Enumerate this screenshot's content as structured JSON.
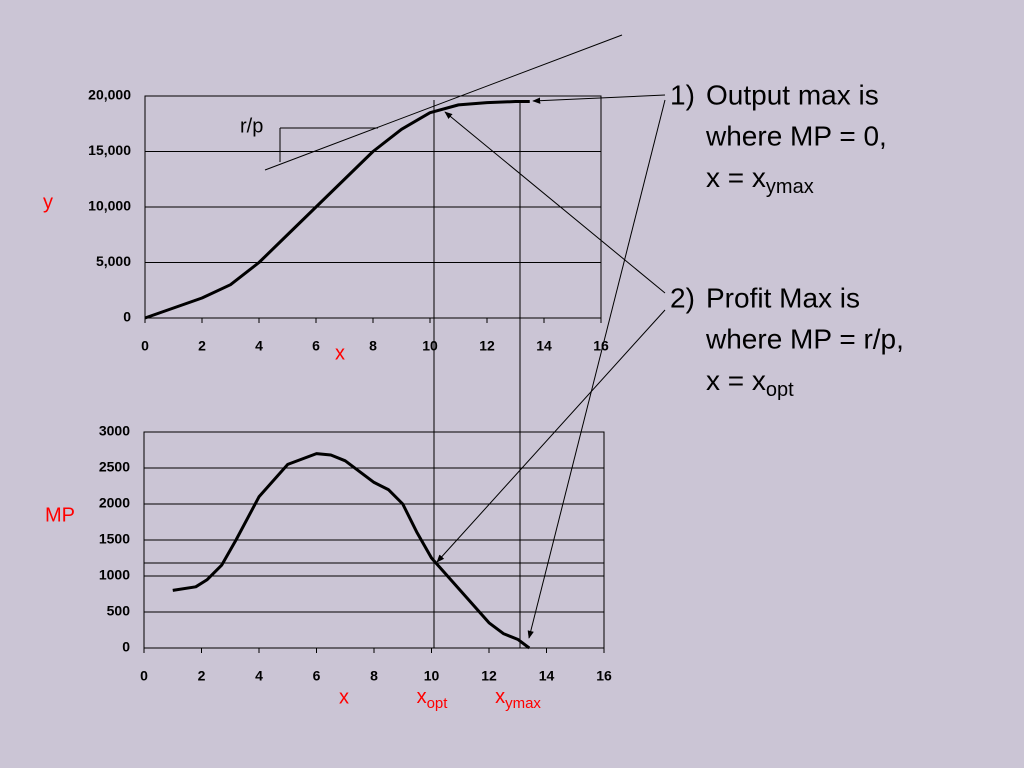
{
  "chart_data": [
    {
      "type": "line",
      "ylabel": "y",
      "xlabel": "x",
      "color": "#000000",
      "x": [
        0,
        1,
        2,
        3,
        4,
        5,
        6,
        7,
        8,
        9,
        10,
        11,
        12,
        13,
        13.5
      ],
      "values": [
        0,
        900,
        1800,
        3000,
        5000,
        7500,
        10000,
        12500,
        15000,
        17000,
        18500,
        19200,
        19400,
        19500,
        19500
      ],
      "xlim": [
        0,
        16
      ],
      "xticks": [
        0,
        2,
        4,
        6,
        8,
        10,
        12,
        14,
        16
      ],
      "ylim": [
        0,
        20000
      ],
      "yticks": [
        0,
        {
          "value": 5000,
          "label": "5,000"
        },
        {
          "value": 10000,
          "label": "10,000"
        },
        {
          "value": 15000,
          "label": "15,000"
        },
        {
          "value": 20000,
          "label": "20,000"
        }
      ],
      "grid": true,
      "annotation": "r/p"
    },
    {
      "type": "line",
      "ylabel": "MP",
      "xlabel": "x",
      "color": "#000000",
      "x": [
        1,
        1.8,
        2.2,
        2.7,
        3.2,
        4,
        5,
        6,
        6.5,
        7,
        8,
        8.5,
        9,
        9.5,
        10,
        11,
        12,
        12.5,
        13,
        13.4
      ],
      "values": [
        800,
        850,
        950,
        1150,
        1500,
        2100,
        2550,
        2700,
        2680,
        2600,
        2300,
        2200,
        2000,
        1600,
        1250,
        800,
        350,
        200,
        120,
        0
      ],
      "xlim": [
        0,
        16
      ],
      "xticks": [
        0,
        2,
        4,
        6,
        8,
        10,
        12,
        14,
        16
      ],
      "ylim": [
        0,
        3000
      ],
      "yticks": [
        0,
        500,
        1000,
        1500,
        2000,
        2500,
        3000
      ],
      "grid": true,
      "markers": [
        {
          "label": "x",
          "sub": "opt"
        },
        {
          "label": "x",
          "sub": "ymax"
        }
      ]
    }
  ],
  "notes": [
    {
      "marker": "1)",
      "lines": [
        "Output max is",
        "where MP = 0,"
      ],
      "last": "x = x",
      "sub": "ymax"
    },
    {
      "marker": "2)",
      "lines": [
        "Profit Max is",
        "where MP = r/p,"
      ],
      "last": "x = x",
      "sub": "opt"
    }
  ]
}
